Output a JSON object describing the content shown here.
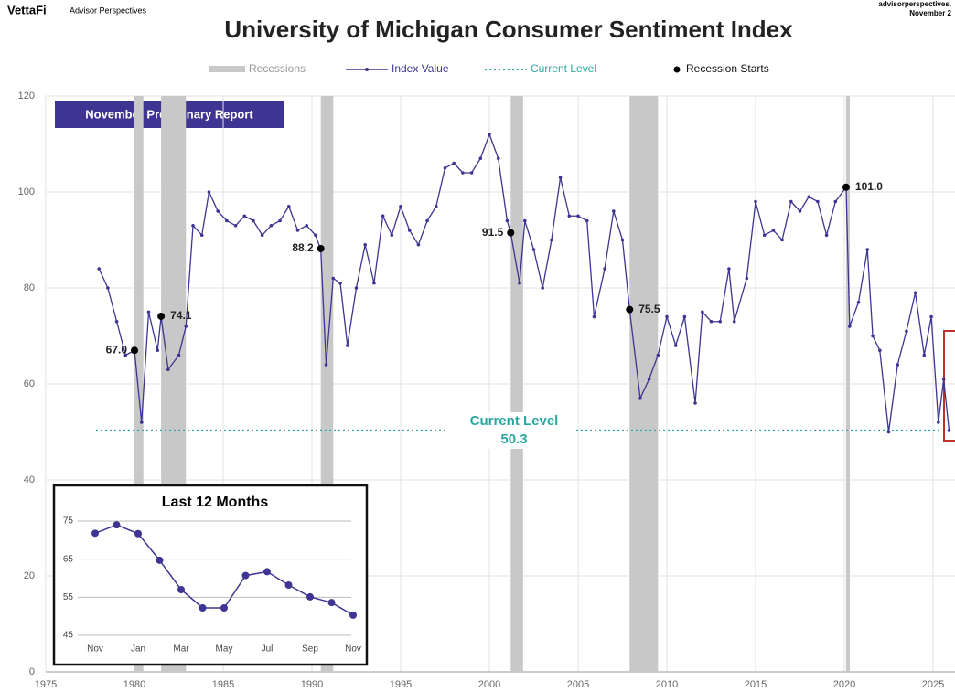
{
  "header": {
    "brand": "VettaFi",
    "brand_sub": "Advisor Perspectives",
    "source": "advisorperspectives.",
    "date": "November 2"
  },
  "chart_data": [
    {
      "type": "line",
      "title": "University of Michigan Consumer Sentiment Index",
      "annotation": "November Preliminary Report",
      "xlim": [
        1975,
        2025
      ],
      "xticks": [
        1975,
        1980,
        1985,
        1990,
        1995,
        2000,
        2005,
        2010,
        2015,
        2020,
        2025
      ],
      "ylim": [
        0,
        120
      ],
      "yticks": [
        0,
        20,
        40,
        60,
        80,
        100,
        120
      ],
      "grid": true,
      "recessions": {
        "name": "Recessions",
        "color": "#c8c8c8",
        "spans": [
          [
            1980.0,
            1980.5
          ],
          [
            1981.5,
            1982.9
          ],
          [
            1990.5,
            1991.2
          ],
          [
            2001.2,
            2001.9
          ],
          [
            2007.9,
            2009.5
          ],
          [
            2020.1,
            2020.3
          ]
        ]
      },
      "series": [
        {
          "name": "Index Value",
          "color": "#3d3591",
          "x": [
            1978.0,
            1978.5,
            1979.0,
            1979.5,
            1980.0,
            1980.4,
            1980.8,
            1981.3,
            1981.5,
            1981.9,
            1982.5,
            1982.9,
            1983.3,
            1983.8,
            1984.2,
            1984.7,
            1985.2,
            1985.7,
            1986.2,
            1986.7,
            1987.2,
            1987.7,
            1988.2,
            1988.7,
            1989.2,
            1989.7,
            1990.2,
            1990.5,
            1990.8,
            1991.2,
            1991.6,
            1992.0,
            1992.5,
            1993.0,
            1993.5,
            1994.0,
            1994.5,
            1995.0,
            1995.5,
            1996.0,
            1996.5,
            1997.0,
            1997.5,
            1998.0,
            1998.5,
            1999.0,
            1999.5,
            2000.0,
            2000.5,
            2001.0,
            2001.2,
            2001.7,
            2002.0,
            2002.5,
            2003.0,
            2003.5,
            2004.0,
            2004.5,
            2005.0,
            2005.5,
            2005.9,
            2006.5,
            2007.0,
            2007.5,
            2007.9,
            2008.5,
            2009.0,
            2009.5,
            2010.0,
            2010.5,
            2011.0,
            2011.6,
            2012.0,
            2012.5,
            2013.0,
            2013.5,
            2013.8,
            2014.5,
            2015.0,
            2015.5,
            2016.0,
            2016.5,
            2017.0,
            2017.5,
            2018.0,
            2018.5,
            2019.0,
            2019.5,
            2020.1,
            2020.3,
            2020.8,
            2021.3,
            2021.6,
            2022.0,
            2022.5,
            2023.0,
            2023.5,
            2024.0,
            2024.5,
            2024.9,
            2025.3,
            2025.6,
            2025.9
          ],
          "values": [
            84,
            80,
            73,
            66,
            67,
            52,
            75,
            67,
            74,
            63,
            66,
            72,
            93,
            91,
            100,
            96,
            94,
            93,
            95,
            94,
            91,
            93,
            94,
            97,
            92,
            93,
            91,
            88,
            64,
            82,
            81,
            68,
            80,
            89,
            81,
            95,
            91,
            97,
            92,
            89,
            94,
            97,
            105,
            106,
            104,
            104,
            107,
            112,
            107,
            94,
            91.5,
            81,
            94,
            88,
            80,
            90,
            103,
            95,
            95,
            94,
            74,
            84,
            96,
            90,
            75.5,
            57,
            61,
            66,
            74,
            68,
            74,
            56,
            75,
            73,
            73,
            84,
            73,
            82,
            98,
            91,
            92,
            90,
            98,
            96,
            99,
            98,
            91,
            98,
            101,
            72,
            77,
            88,
            70,
            67,
            50,
            64,
            71,
            79,
            66,
            74,
            52,
            61,
            50.3
          ]
        }
      ],
      "current_level": {
        "name": "Current Level",
        "color": "#2aa8a0",
        "value": 50.3,
        "label": "Current Level"
      },
      "recession_starts": {
        "name": "Recession Starts",
        "points": [
          {
            "x": 1980.0,
            "value": 67,
            "label": "67.0"
          },
          {
            "x": 1981.5,
            "value": 74.1,
            "label": "74.1"
          },
          {
            "x": 1990.5,
            "value": 88.2,
            "label": "88.2"
          },
          {
            "x": 2001.2,
            "value": 91.5,
            "label": "91.5"
          },
          {
            "x": 2007.9,
            "value": 75.5,
            "label": "75.5"
          },
          {
            "x": 2020.1,
            "value": 101,
            "label": "101.0"
          }
        ]
      }
    },
    {
      "type": "line",
      "title": "Last 12 Months",
      "categories": [
        "Nov",
        null,
        "Jan",
        null,
        "Mar",
        null,
        "May",
        null,
        "Jul",
        null,
        "Sep",
        null,
        "Nov"
      ],
      "values": [
        71.8,
        74.0,
        71.7,
        64.7,
        57.0,
        52.2,
        52.2,
        60.7,
        61.7,
        58.2,
        55.1,
        53.6,
        50.3
      ],
      "color": "#3d3591",
      "ylim": [
        45,
        75
      ],
      "yticks": [
        45,
        55,
        65,
        75
      ],
      "grid": true
    }
  ]
}
